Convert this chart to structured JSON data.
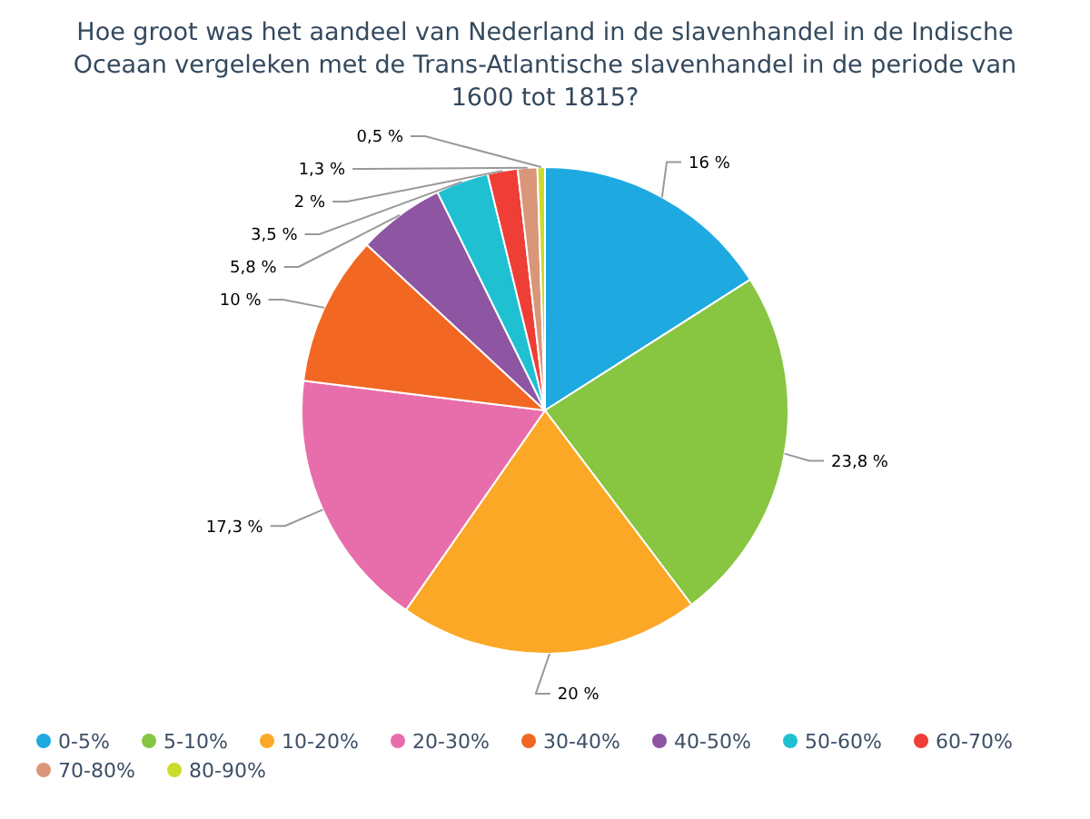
{
  "chart_data": {
    "type": "pie",
    "title": "Hoe groot was het aandeel van Nederland in de slavenhandel in de Indische Oceaan vergeleken met de Trans-Atlantische slavenhandel in de periode van 1600 tot 1815?",
    "categories": [
      "0-5%",
      "5-10%",
      "10-20%",
      "20-30%",
      "30-40%",
      "40-50%",
      "50-60%",
      "60-70%",
      "70-80%",
      "80-90%"
    ],
    "values": [
      16,
      23.8,
      20,
      17.3,
      10,
      5.8,
      3.5,
      2,
      1.3,
      0.5
    ],
    "colors": [
      "#1fa9e1",
      "#88c540",
      "#fba826",
      "#e86eab",
      "#f26722",
      "#8e55a3",
      "#1fc0d2",
      "#ee3e36",
      "#d99679",
      "#cbdb2a"
    ],
    "value_labels": [
      "16 %",
      "23,8 %",
      "20 %",
      "17,3 %",
      "10 %",
      "5,8 %",
      "3,5 %",
      "2 %",
      "1,3 %",
      "0,5 %"
    ],
    "legend": "bottom"
  }
}
